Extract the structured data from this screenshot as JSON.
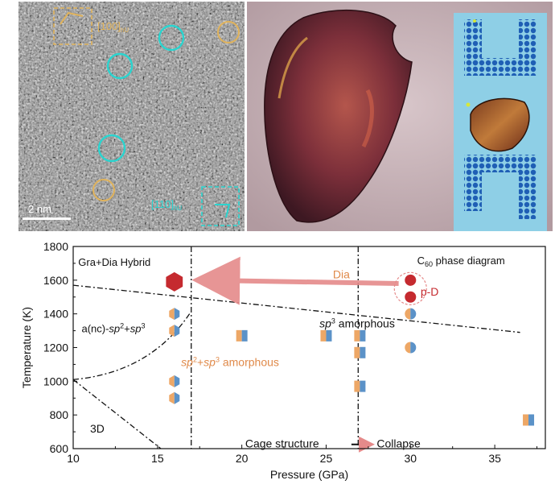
{
  "tem_panel": {
    "labels": {
      "dir_a": "[100]",
      "dir_a_sub": "hU",
      "dir_b": "[110]",
      "dir_b_sub": "hU",
      "scalebar": "2 nm"
    },
    "colors": {
      "cyan": "#2ad4cf",
      "gold": "#e0b35c"
    }
  },
  "photo_panel": {
    "colors": {
      "background": "#c7b1b6",
      "sample": "#6a2834",
      "blue_letters": "#1f5fb5"
    }
  },
  "chart_data": {
    "type": "scatter",
    "title": "C60 phase diagram",
    "xlabel": "Pressure (GPa)",
    "ylabel": "Temperature (K)",
    "xlim": [
      10,
      38
    ],
    "ylim": [
      600,
      1800
    ],
    "xticks": [
      "10",
      "15",
      "20",
      "25",
      "30",
      "35"
    ],
    "yticks": [
      "600",
      "800",
      "1000",
      "1200",
      "1400",
      "1600",
      "1800"
    ],
    "annotations": {
      "hybrid": "Gra+Dia Hybrid",
      "phase_title_main": "C",
      "phase_title_sub": "60",
      "phase_title_rest": " phase diagram",
      "dia": "Dia",
      "pd": "p-D",
      "anc_main": "a(nc)-",
      "sp_a": "sp",
      "sp_a_sup": "2",
      "plus": "+",
      "sp_b": "sp",
      "sp_b_sup": "3",
      "sp3_amorph_sp": "sp",
      "sp3_amorph_sup": "3",
      "sp3_amorph_rest": " amorphous",
      "mix_sp1": "sp",
      "mix_sup1": "2",
      "mix_plus": "+",
      "mix_sp2": "sp",
      "mix_sup2": "3",
      "mix_rest": " amorphous",
      "three_d": "3D",
      "cage": "Cage structure",
      "collapse": "Collapse"
    },
    "series": [
      {
        "marker": "hexagon-split",
        "points": [
          [
            16,
            1400
          ],
          [
            16,
            1300
          ],
          [
            16,
            1000
          ],
          [
            16,
            900
          ]
        ]
      },
      {
        "marker": "square-split",
        "points": [
          [
            20,
            1270
          ],
          [
            25,
            1270
          ],
          [
            27,
            1270
          ],
          [
            27,
            1170
          ],
          [
            27,
            970
          ],
          [
            37,
            770
          ]
        ]
      },
      {
        "marker": "circle-split",
        "points": [
          [
            30,
            1400
          ],
          [
            30,
            1200
          ]
        ]
      },
      {
        "marker": "circle-red",
        "points": [
          [
            30,
            1600
          ],
          [
            30,
            1500
          ]
        ]
      },
      {
        "marker": "hexagon-red",
        "points": [
          [
            16,
            1590
          ]
        ]
      }
    ],
    "colors": {
      "orange": "#eda766",
      "blue": "#5b92c8",
      "red": "#c52a2f",
      "arrow": "#e58a8a"
    }
  }
}
